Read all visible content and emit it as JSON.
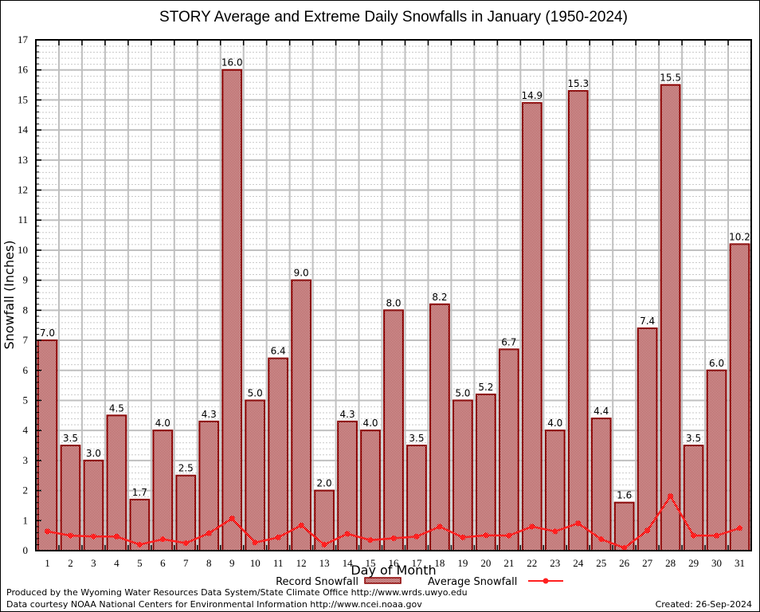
{
  "chart_data": {
    "type": "bar",
    "title": "STORY Average and Extreme Daily Snowfalls in January (1950-2024)",
    "xlabel": "Day of Month",
    "ylabel": "Snowfall (Inches)",
    "ylim": [
      0,
      17
    ],
    "yticks": [
      "0",
      "1",
      "2",
      "3",
      "4",
      "5",
      "6",
      "7",
      "8",
      "9",
      "10",
      "11",
      "12",
      "13",
      "14",
      "15",
      "16",
      "17"
    ],
    "grid": true,
    "categories": [
      "1",
      "2",
      "3",
      "4",
      "5",
      "6",
      "7",
      "8",
      "9",
      "10",
      "11",
      "12",
      "13",
      "14",
      "15",
      "16",
      "17",
      "18",
      "19",
      "20",
      "21",
      "22",
      "23",
      "24",
      "25",
      "26",
      "27",
      "28",
      "29",
      "30",
      "31"
    ],
    "series": [
      {
        "name": "Record Snowfall",
        "type": "bar",
        "color": "#8b0000",
        "values": [
          7.0,
          3.5,
          3.0,
          4.5,
          1.7,
          4.0,
          2.5,
          4.3,
          16.0,
          5.0,
          6.4,
          9.0,
          2.0,
          4.3,
          4.0,
          8.0,
          3.5,
          8.2,
          5.0,
          5.2,
          6.7,
          14.9,
          4.0,
          15.3,
          4.4,
          1.6,
          7.4,
          15.5,
          3.5,
          6.0,
          10.2
        ],
        "labels": [
          "7.0",
          "3.5",
          "3.0",
          "4.5",
          "1.7",
          "4.0",
          "2.5",
          "4.3",
          "16.0",
          "5.0",
          "6.4",
          "9.0",
          "2.0",
          "4.3",
          "4.0",
          "8.0",
          "3.5",
          "8.2",
          "5.0",
          "5.2",
          "6.7",
          "14.9",
          "4.0",
          "15.3",
          "4.4",
          "1.6",
          "7.4",
          "15.5",
          "3.5",
          "6.0",
          "10.2"
        ]
      },
      {
        "name": "Average Snowfall",
        "type": "line",
        "color": "#ff2020",
        "values": [
          0.64,
          0.5,
          0.47,
          0.47,
          0.2,
          0.38,
          0.25,
          0.58,
          1.07,
          0.27,
          0.44,
          0.84,
          0.2,
          0.56,
          0.35,
          0.41,
          0.47,
          0.8,
          0.44,
          0.51,
          0.5,
          0.8,
          0.64,
          0.91,
          0.38,
          0.09,
          0.67,
          1.81,
          0.5,
          0.5,
          0.75
        ]
      }
    ],
    "legend": {
      "placement": "bottom",
      "items": [
        "Record Snowfall",
        "Average Snowfall"
      ]
    }
  },
  "footer": {
    "produced_by": "Produced by the Wyoming Water Resources Data System/State Climate Office http://www.wrds.uwyo.edu",
    "data_courtesy": "Data courtesy NOAA National Centers for Environmental Information http://www.ncei.noaa.gov",
    "created": "Created:  26-Sep-2024"
  }
}
